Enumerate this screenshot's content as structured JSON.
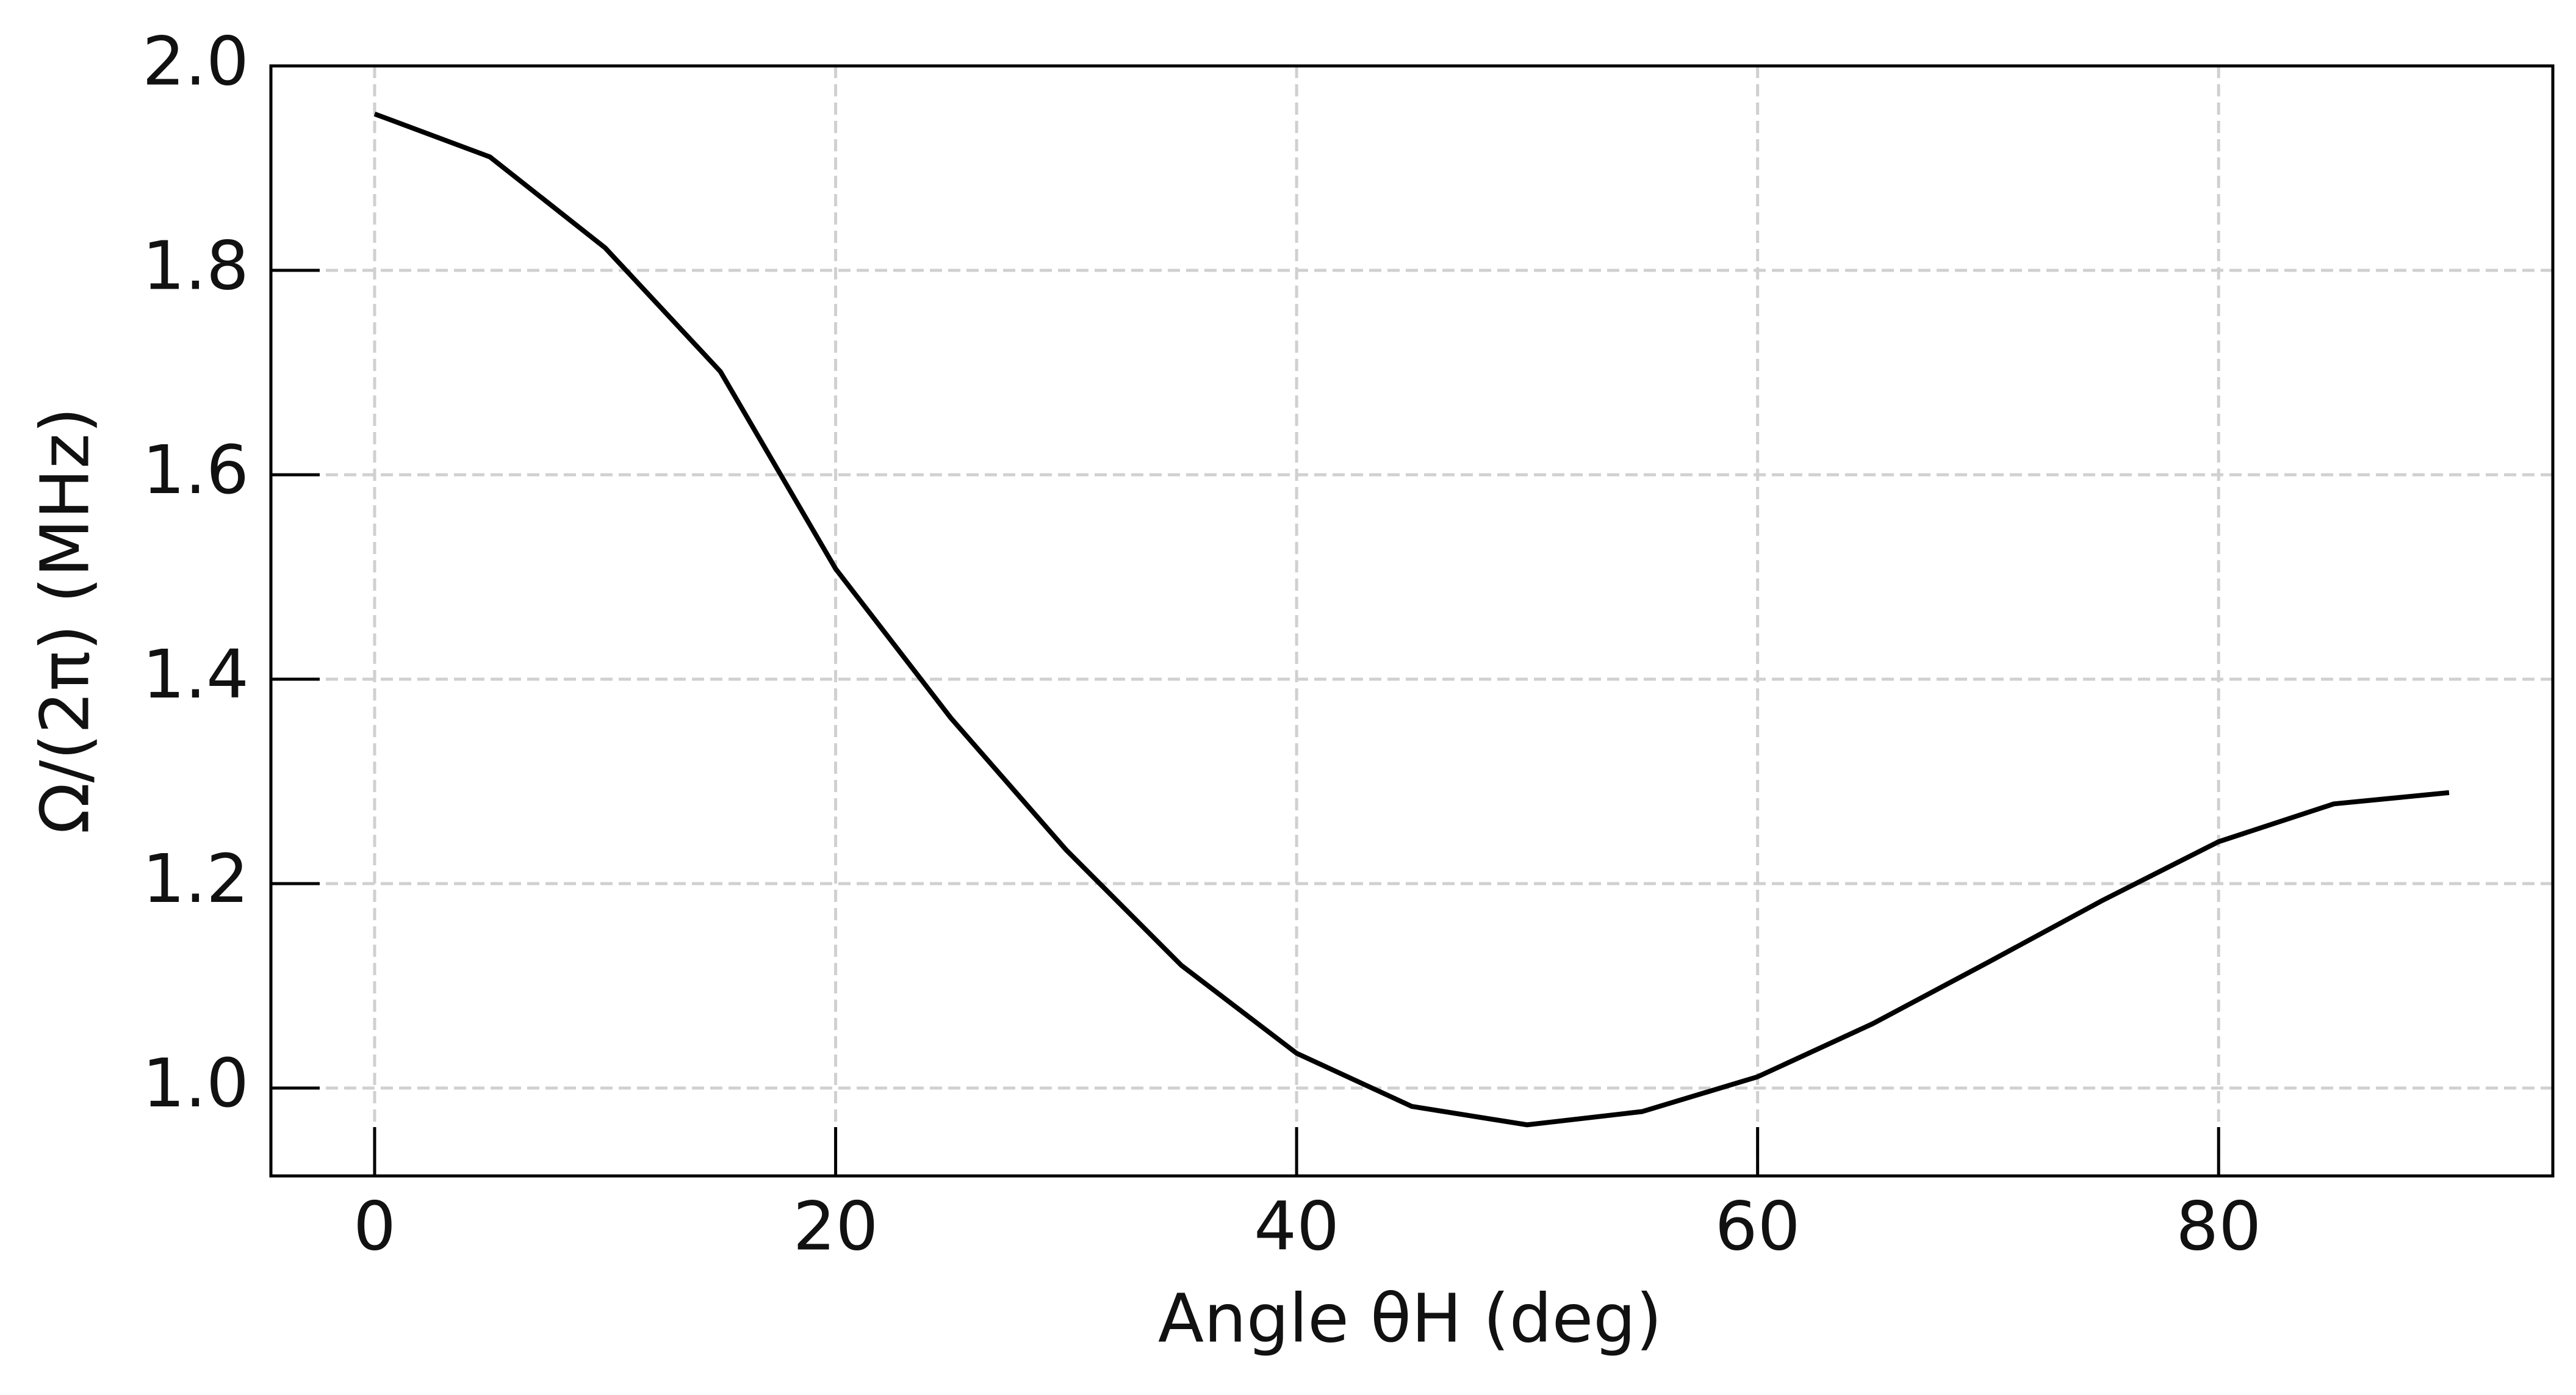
{
  "chart_data": {
    "type": "line",
    "x_label": "Angle θH (deg)",
    "y_label": "Ω/(2π) (MHz)",
    "x": [
      0,
      5,
      10,
      15,
      20,
      25,
      30,
      35,
      40,
      45,
      50,
      55,
      60,
      65,
      70,
      75,
      80,
      85,
      90
    ],
    "series": [
      {
        "color": "#000000",
        "values": [
          1.953,
          1.911,
          1.822,
          1.701,
          1.508,
          1.362,
          1.233,
          1.12,
          1.034,
          0.982,
          0.964,
          0.977,
          1.011,
          1.063,
          1.123,
          1.184,
          1.241,
          1.278,
          1.289
        ]
      }
    ],
    "xlim": [
      -4.5,
      94.5
    ],
    "ylim": [
      0.914,
      2.0
    ],
    "xticks": [
      0,
      20,
      40,
      60,
      80
    ],
    "yticks": [
      {
        "value": 1.0,
        "label": "1.0"
      },
      1.2,
      1.4,
      1.6,
      1.8,
      {
        "value": 2.0,
        "label": "2.0"
      }
    ],
    "grid": true
  }
}
